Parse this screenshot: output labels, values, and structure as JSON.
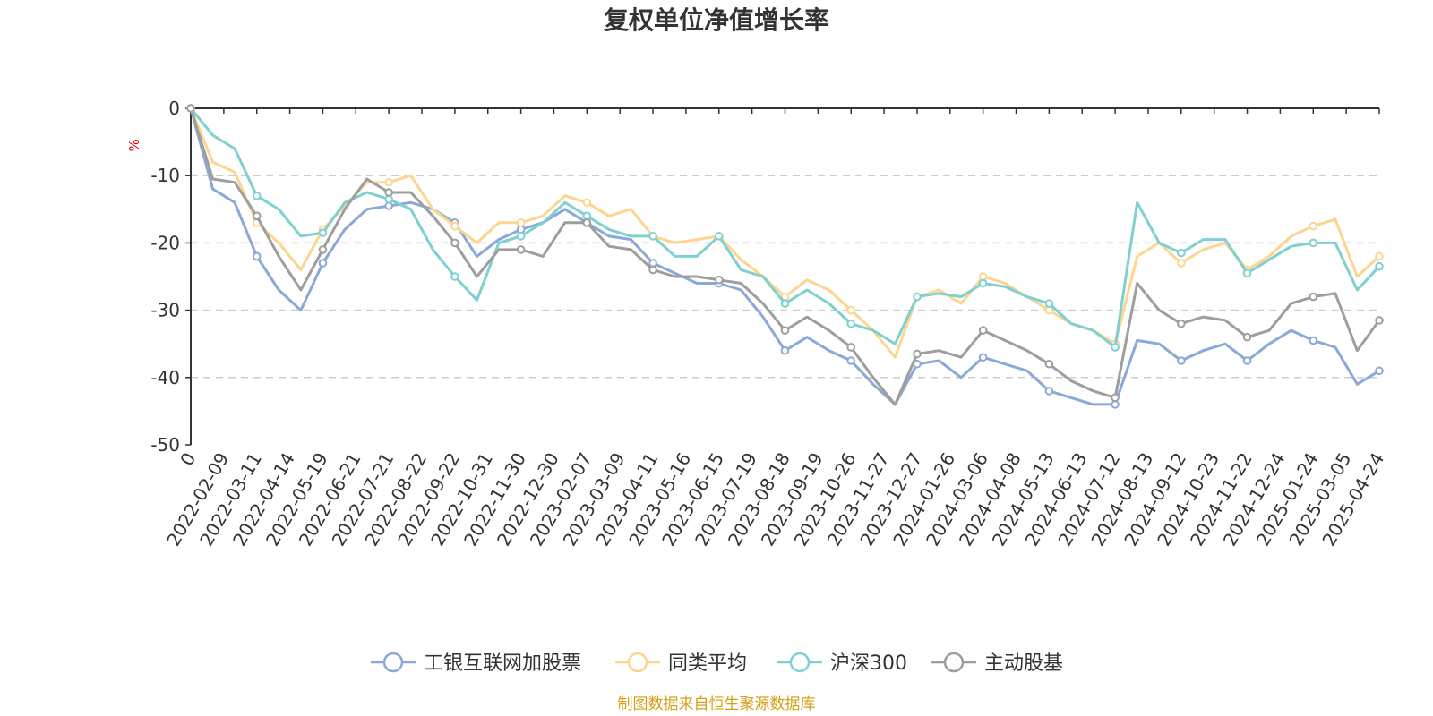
{
  "chart_data": {
    "type": "line",
    "title": "复权单位净值增长率",
    "ylabel": "%",
    "ylim": [
      -50,
      0
    ],
    "yticks": [
      0,
      -10,
      -20,
      -30,
      -40,
      -50
    ],
    "x_first": "0",
    "x_tick_labels": [
      "2022-02-09",
      "2022-03-11",
      "2022-04-14",
      "2022-05-19",
      "2022-06-21",
      "2022-07-21",
      "2022-08-22",
      "2022-09-22",
      "2022-10-31",
      "2022-11-30",
      "2022-12-30",
      "2023-02-07",
      "2023-03-09",
      "2023-04-11",
      "2023-05-16",
      "2023-06-15",
      "2023-07-19",
      "2023-08-18",
      "2023-09-19",
      "2023-10-26",
      "2023-11-27",
      "2023-12-27",
      "2024-01-26",
      "2024-03-06",
      "2024-04-08",
      "2024-05-13",
      "2024-06-13",
      "2024-07-12",
      "2024-08-13",
      "2024-09-12",
      "2024-10-23",
      "2024-11-22",
      "2024-12-24",
      "2025-01-24",
      "2025-03-05",
      "2025-04-24"
    ],
    "grid": true,
    "legend_position": "bottom",
    "series": [
      {
        "name": "工银互联网加股票",
        "color": "#8aa8d8",
        "values": [
          0,
          -12,
          -14,
          -22,
          -27,
          -30,
          -23,
          -18,
          -15,
          -14.5,
          -14,
          -15,
          -17,
          -22,
          -19.5,
          -18,
          -17,
          -15,
          -17,
          -19,
          -19.5,
          -23,
          -24.5,
          -26,
          -26,
          -27,
          -31,
          -36,
          -34,
          -36,
          -37.5,
          -41,
          -44,
          -38,
          -37.5,
          -40,
          -37,
          -38,
          -39,
          -42,
          -43,
          -44,
          -44,
          -34.5,
          -35,
          -37.5,
          -36,
          -35,
          -37.5,
          -35,
          -33,
          -34.5,
          -35.5,
          -41,
          -39
        ]
      },
      {
        "name": "同类平均",
        "color": "#fdd58e",
        "values": [
          0,
          -8,
          -9.5,
          -17,
          -20,
          -24,
          -18,
          -14.5,
          -11,
          -11,
          -10,
          -15,
          -17.5,
          -20,
          -17,
          -17,
          -16,
          -13,
          -14,
          -16,
          -15,
          -19,
          -20,
          -19.5,
          -19,
          -22.5,
          -25,
          -28,
          -25.5,
          -27,
          -30,
          -33,
          -37,
          -28,
          -27,
          -29,
          -25,
          -26,
          -28,
          -30,
          -32,
          -33,
          -35,
          -22,
          -20,
          -23,
          -21,
          -20,
          -24,
          -22,
          -19,
          -17.5,
          -16.5,
          -25,
          -22
        ]
      },
      {
        "name": "沪深300",
        "color": "#7fd0d0",
        "values": [
          0,
          -4,
          -6,
          -13,
          -15,
          -19,
          -18.5,
          -14,
          -12.5,
          -13.5,
          -15,
          -21,
          -25,
          -28.5,
          -20,
          -19,
          -17,
          -14,
          -16,
          -18,
          -19,
          -19,
          -22,
          -22,
          -19,
          -24,
          -25,
          -29,
          -27,
          -29,
          -32,
          -33,
          -35,
          -28,
          -27.5,
          -28,
          -26,
          -26.5,
          -28,
          -29,
          -32,
          -33,
          -35.5,
          -14,
          -20,
          -21.5,
          -19.5,
          -19.5,
          -24.5,
          -22.5,
          -20.5,
          -20,
          -20,
          -27,
          -23.5
        ]
      },
      {
        "name": "主动股基",
        "color": "#9e9e9e",
        "values": [
          0,
          -10.5,
          -11,
          -16,
          -22,
          -27,
          -21,
          -15,
          -10.5,
          -12.5,
          -12.5,
          -16,
          -20,
          -25,
          -21,
          -21,
          -22,
          -17,
          -17,
          -20.5,
          -21,
          -24,
          -25,
          -25,
          -25.5,
          -26,
          -29,
          -33,
          -31,
          -33,
          -35.5,
          -40,
          -44,
          -36.5,
          -36,
          -37,
          -33,
          -34.5,
          -36,
          -38,
          -40.5,
          -42,
          -43,
          -26,
          -30,
          -32,
          -31,
          -31.5,
          -34,
          -33,
          -29,
          -28,
          -27.5,
          -36,
          -31.5
        ]
      }
    ]
  },
  "source_note": "制图数据来自恒生聚源数据库"
}
